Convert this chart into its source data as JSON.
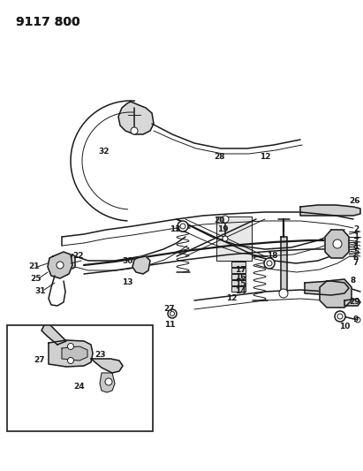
{
  "title": "9117 800",
  "bg_color": "#f5f5f0",
  "line_color": "#1a1a1a",
  "title_fontsize": 10,
  "fig_width": 4.11,
  "fig_height": 5.33,
  "dpi": 100
}
